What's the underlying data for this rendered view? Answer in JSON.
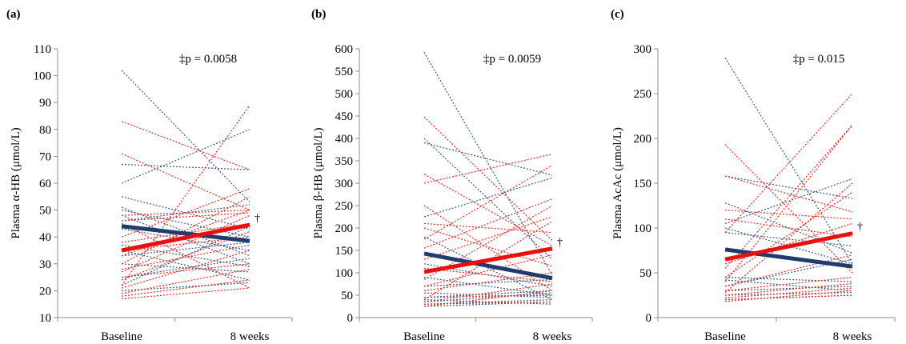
{
  "colors": {
    "blue": "#1f3c6e",
    "red": "#e8100e",
    "blue_thin": "#3a5a8c",
    "red_thin": "#f02a22"
  },
  "chart_data": [
    {
      "type": "line",
      "panel": "(a)",
      "title": "",
      "ylabel": "Plasma α-HB (μmol/L)",
      "categories": [
        "Baseline",
        "8 weeks"
      ],
      "ylim": [
        10,
        110
      ],
      "yticks": [
        10,
        20,
        30,
        40,
        50,
        60,
        70,
        80,
        90,
        100,
        110
      ],
      "annotation": "‡p = 0.0058",
      "mean_marker": "†",
      "mean_lines": [
        {
          "color": "blue",
          "values": [
            44,
            38.5
          ]
        },
        {
          "color": "red",
          "values": [
            35,
            44.5
          ]
        }
      ],
      "individuals": [
        {
          "color": "blue",
          "values": [
            102,
            53
          ]
        },
        {
          "color": "blue",
          "values": [
            67,
            65
          ]
        },
        {
          "color": "blue",
          "values": [
            60,
            80
          ]
        },
        {
          "color": "blue",
          "values": [
            55,
            43
          ]
        },
        {
          "color": "blue",
          "values": [
            51,
            33
          ]
        },
        {
          "color": "blue",
          "values": [
            50,
            40
          ]
        },
        {
          "color": "blue",
          "values": [
            48,
            30
          ]
        },
        {
          "color": "blue",
          "values": [
            46,
            52
          ]
        },
        {
          "color": "blue",
          "values": [
            43,
            35
          ]
        },
        {
          "color": "blue",
          "values": [
            37,
            29
          ]
        },
        {
          "color": "blue",
          "values": [
            35,
            24
          ]
        },
        {
          "color": "blue",
          "values": [
            33,
            38
          ]
        },
        {
          "color": "blue",
          "values": [
            30,
            27
          ]
        },
        {
          "color": "blue",
          "values": [
            25,
            32
          ]
        },
        {
          "color": "blue",
          "values": [
            22,
            44
          ]
        },
        {
          "color": "blue",
          "values": [
            20,
            23
          ]
        },
        {
          "color": "red",
          "values": [
            83,
            65
          ]
        },
        {
          "color": "red",
          "values": [
            71,
            50
          ]
        },
        {
          "color": "red",
          "values": [
            48,
            50
          ]
        },
        {
          "color": "red",
          "values": [
            46,
            49
          ]
        },
        {
          "color": "red",
          "values": [
            45,
            21
          ]
        },
        {
          "color": "red",
          "values": [
            40,
            58
          ]
        },
        {
          "color": "red",
          "values": [
            38,
            45
          ]
        },
        {
          "color": "red",
          "values": [
            35,
            40
          ]
        },
        {
          "color": "red",
          "values": [
            33,
            50
          ]
        },
        {
          "color": "red",
          "values": [
            30,
            55
          ]
        },
        {
          "color": "red",
          "values": [
            28,
            37
          ]
        },
        {
          "color": "red",
          "values": [
            27,
            48
          ]
        },
        {
          "color": "red",
          "values": [
            25,
            30
          ]
        },
        {
          "color": "red",
          "values": [
            24,
            42
          ]
        },
        {
          "color": "red",
          "values": [
            22,
            89
          ]
        },
        {
          "color": "red",
          "values": [
            21,
            35
          ]
        },
        {
          "color": "red",
          "values": [
            19,
            28
          ]
        },
        {
          "color": "red",
          "values": [
            18,
            24
          ]
        },
        {
          "color": "red",
          "values": [
            17,
            21
          ]
        }
      ]
    },
    {
      "type": "line",
      "panel": "(b)",
      "title": "",
      "ylabel": "Plasma β-HB (μmol/L)",
      "categories": [
        "Baseline",
        "8 weeks"
      ],
      "ylim": [
        0,
        600
      ],
      "yticks": [
        0,
        50,
        100,
        150,
        200,
        250,
        300,
        350,
        400,
        450,
        500,
        550,
        600
      ],
      "annotation": "‡p = 0.0059",
      "mean_marker": "†",
      "mean_lines": [
        {
          "color": "blue",
          "values": [
            143,
            88
          ]
        },
        {
          "color": "red",
          "values": [
            102,
            154
          ]
        }
      ],
      "individuals": [
        {
          "color": "blue",
          "values": [
            592,
            95
          ]
        },
        {
          "color": "blue",
          "values": [
            400,
            130
          ]
        },
        {
          "color": "blue",
          "values": [
            390,
            318
          ]
        },
        {
          "color": "blue",
          "values": [
            225,
            312
          ]
        },
        {
          "color": "blue",
          "values": [
            180,
            40
          ]
        },
        {
          "color": "blue",
          "values": [
            120,
            70
          ]
        },
        {
          "color": "blue",
          "values": [
            90,
            50
          ]
        },
        {
          "color": "blue",
          "values": [
            70,
            85
          ]
        },
        {
          "color": "blue",
          "values": [
            55,
            45
          ]
        },
        {
          "color": "blue",
          "values": [
            45,
            60
          ]
        },
        {
          "color": "blue",
          "values": [
            40,
            30
          ]
        },
        {
          "color": "blue",
          "values": [
            35,
            55
          ]
        },
        {
          "color": "blue",
          "values": [
            30,
            40
          ]
        },
        {
          "color": "blue",
          "values": [
            25,
            35
          ]
        },
        {
          "color": "red",
          "values": [
            448,
            172
          ]
        },
        {
          "color": "red",
          "values": [
            320,
            160
          ]
        },
        {
          "color": "red",
          "values": [
            300,
            365
          ]
        },
        {
          "color": "red",
          "values": [
            250,
            60
          ]
        },
        {
          "color": "red",
          "values": [
            210,
            190
          ]
        },
        {
          "color": "red",
          "values": [
            200,
            115
          ]
        },
        {
          "color": "red",
          "values": [
            175,
            340
          ]
        },
        {
          "color": "red",
          "values": [
            155,
            265
          ]
        },
        {
          "color": "red",
          "values": [
            130,
            225
          ]
        },
        {
          "color": "red",
          "values": [
            110,
            80
          ]
        },
        {
          "color": "red",
          "values": [
            85,
            250
          ]
        },
        {
          "color": "red",
          "values": [
            70,
            140
          ]
        },
        {
          "color": "red",
          "values": [
            60,
            100
          ]
        },
        {
          "color": "red",
          "values": [
            45,
            50
          ]
        },
        {
          "color": "red",
          "values": [
            40,
            215
          ]
        },
        {
          "color": "red",
          "values": [
            35,
            75
          ]
        },
        {
          "color": "red",
          "values": [
            30,
            35
          ]
        },
        {
          "color": "red",
          "values": [
            25,
            60
          ]
        }
      ]
    },
    {
      "type": "line",
      "panel": "(c)",
      "title": "",
      "ylabel": "Plasma AcAc (μmol/L)",
      "categories": [
        "Baseline",
        "8 weeks"
      ],
      "ylim": [
        0,
        300
      ],
      "yticks": [
        0,
        50,
        100,
        150,
        200,
        250,
        300
      ],
      "annotation": "‡p = 0.015",
      "mean_marker": "†",
      "mean_lines": [
        {
          "color": "blue",
          "values": [
            76,
            57
          ]
        },
        {
          "color": "red",
          "values": [
            65,
            94
          ]
        }
      ],
      "individuals": [
        {
          "color": "blue",
          "values": [
            290,
            60
          ]
        },
        {
          "color": "blue",
          "values": [
            158,
            133
          ]
        },
        {
          "color": "blue",
          "values": [
            128,
            72
          ]
        },
        {
          "color": "blue",
          "values": [
            105,
            155
          ]
        },
        {
          "color": "blue",
          "values": [
            100,
            60
          ]
        },
        {
          "color": "blue",
          "values": [
            95,
            80
          ]
        },
        {
          "color": "blue",
          "values": [
            45,
            40
          ]
        },
        {
          "color": "blue",
          "values": [
            42,
            30
          ]
        },
        {
          "color": "blue",
          "values": [
            35,
            65
          ]
        },
        {
          "color": "blue",
          "values": [
            30,
            35
          ]
        },
        {
          "color": "blue",
          "values": [
            25,
            28
          ]
        },
        {
          "color": "blue",
          "values": [
            20,
            25
          ]
        },
        {
          "color": "red",
          "values": [
            193,
            50
          ]
        },
        {
          "color": "red",
          "values": [
            158,
            118
          ]
        },
        {
          "color": "red",
          "values": [
            120,
            110
          ]
        },
        {
          "color": "red",
          "values": [
            110,
            90
          ]
        },
        {
          "color": "red",
          "values": [
            95,
            250
          ]
        },
        {
          "color": "red",
          "values": [
            60,
            105
          ]
        },
        {
          "color": "red",
          "values": [
            55,
            215
          ]
        },
        {
          "color": "red",
          "values": [
            45,
            140
          ]
        },
        {
          "color": "red",
          "values": [
            40,
            215
          ]
        },
        {
          "color": "red",
          "values": [
            35,
            70
          ]
        },
        {
          "color": "red",
          "values": [
            30,
            45
          ]
        },
        {
          "color": "red",
          "values": [
            28,
            150
          ]
        },
        {
          "color": "red",
          "values": [
            25,
            38
          ]
        },
        {
          "color": "red",
          "values": [
            22,
            33
          ]
        },
        {
          "color": "red",
          "values": [
            20,
            25
          ]
        },
        {
          "color": "red",
          "values": [
            18,
            30
          ]
        }
      ]
    }
  ]
}
